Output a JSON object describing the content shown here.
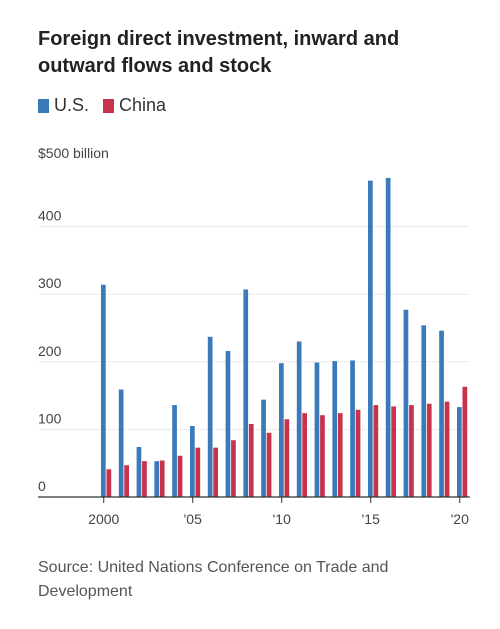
{
  "title": "Foreign direct investment, inward and outward flows and stock",
  "legend": [
    {
      "label": "U.S.",
      "color": "#3a7ab8"
    },
    {
      "label": "China",
      "color": "#c8324a"
    }
  ],
  "unit_label": "$500 billion",
  "source": "Source: United Nations Conference on Trade and Development",
  "chart_data": {
    "type": "bar",
    "title": "Foreign direct investment, inward and outward flows and stock",
    "categories": [
      "2000",
      "2001",
      "2002",
      "2003",
      "2004",
      "2005",
      "2006",
      "2007",
      "2008",
      "2009",
      "2010",
      "2011",
      "2012",
      "2013",
      "2014",
      "2015",
      "2016",
      "2017",
      "2018",
      "2019",
      "2020"
    ],
    "series": [
      {
        "name": "U.S.",
        "color": "#3a7ab8",
        "values": [
          314,
          159,
          74,
          53,
          136,
          105,
          237,
          216,
          307,
          144,
          198,
          230,
          199,
          201,
          202,
          468,
          472,
          277,
          254,
          246,
          133
        ]
      },
      {
        "name": "China",
        "color": "#c8324a",
        "values": [
          41,
          47,
          53,
          54,
          61,
          73,
          73,
          84,
          108,
          95,
          115,
          124,
          121,
          124,
          129,
          136,
          134,
          136,
          138,
          141,
          163
        ]
      }
    ],
    "ylim": [
      0,
      500
    ],
    "y_ticks": [
      0,
      100,
      200,
      300,
      400
    ],
    "x_tick_labels": [
      {
        "index": 0,
        "label": "2000"
      },
      {
        "index": 5,
        "label": "'05"
      },
      {
        "index": 10,
        "label": "'10"
      },
      {
        "index": 15,
        "label": "'15"
      },
      {
        "index": 20,
        "label": "'20"
      }
    ],
    "grid": true
  }
}
